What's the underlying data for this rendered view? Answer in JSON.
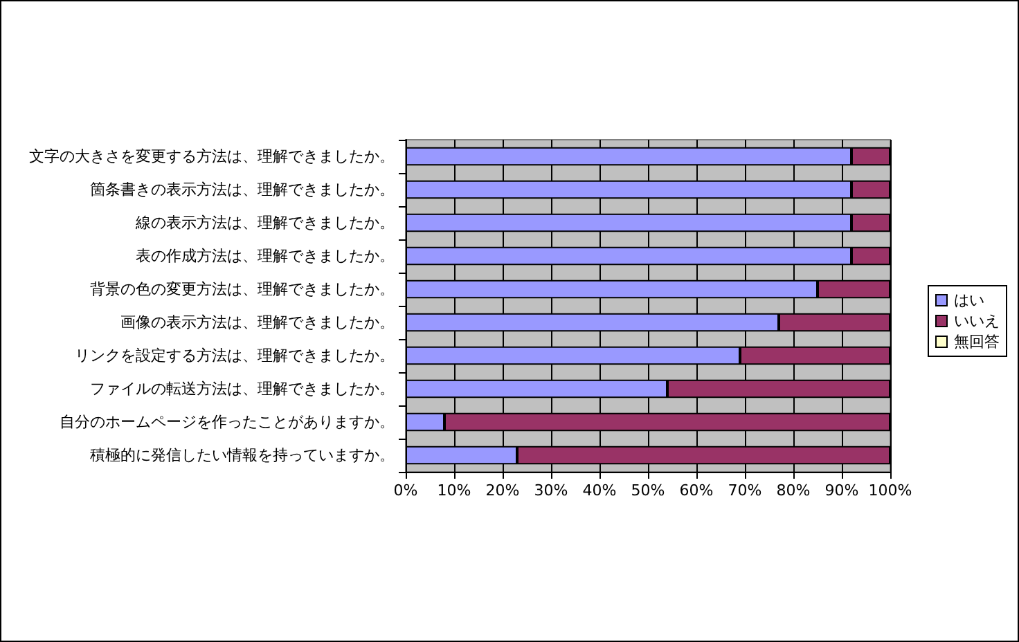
{
  "chart_data": {
    "type": "bar",
    "orientation": "horizontal",
    "stacked": true,
    "categories": [
      "文字の大きさを変更する方法は、理解できましたか。",
      "箇条書きの表示方法は、理解できましたか。",
      "線の表示方法は、理解できましたか。",
      "表の作成方法は、理解できましたか。",
      "背景の色の変更方法は、理解できましたか。",
      "画像の表示方法は、理解できましたか。",
      "リンクを設定する方法は、理解できましたか。",
      "ファイルの転送方法は、理解できましたか。",
      "自分のホームページを作ったことがありますか。",
      "積極的に発信したい情報を持っていますか。"
    ],
    "series": [
      {
        "name": "はい",
        "color": "#9999ff",
        "values": [
          92,
          92,
          92,
          92,
          85,
          77,
          69,
          54,
          8,
          23
        ]
      },
      {
        "name": "いいえ",
        "color": "#993366",
        "values": [
          8,
          8,
          8,
          8,
          15,
          23,
          31,
          46,
          92,
          77
        ]
      },
      {
        "name": "無回答",
        "color": "#ffffcc",
        "values": [
          0,
          0,
          0,
          0,
          0,
          0,
          0,
          0,
          0,
          0
        ]
      }
    ],
    "xlim": [
      0,
      100
    ],
    "xticks": [
      {
        "value": 0,
        "label": "0%"
      },
      {
        "value": 10,
        "label": "10%"
      },
      {
        "value": 20,
        "label": "20%"
      },
      {
        "value": 30,
        "label": "30%"
      },
      {
        "value": 40,
        "label": "40%"
      },
      {
        "value": 50,
        "label": "50%"
      },
      {
        "value": 60,
        "label": "60%"
      },
      {
        "value": 70,
        "label": "70%"
      },
      {
        "value": 80,
        "label": "80%"
      },
      {
        "value": 90,
        "label": "90%"
      },
      {
        "value": 100,
        "label": "100%"
      }
    ],
    "grid": "x",
    "legend": "right"
  }
}
